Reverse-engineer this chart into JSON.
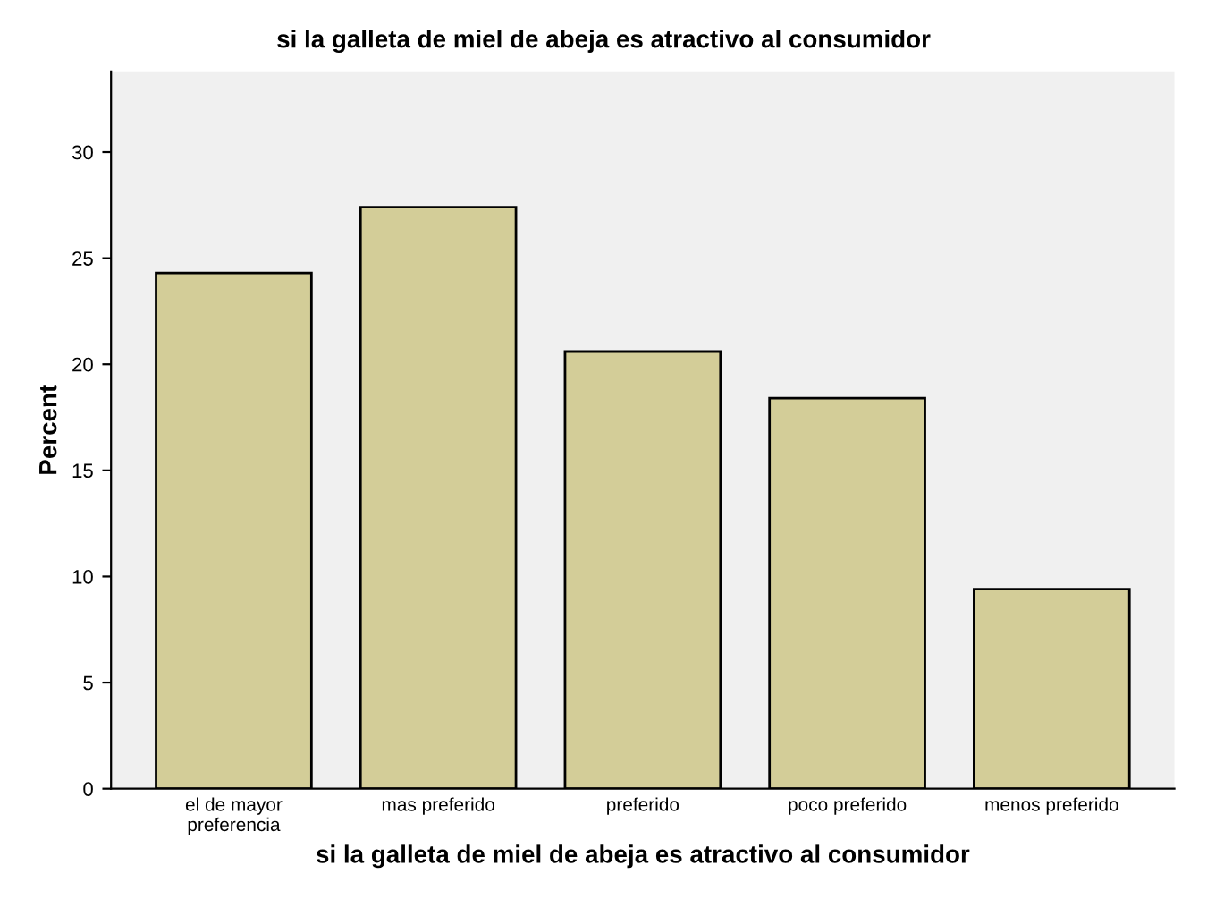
{
  "chart_data": {
    "type": "bar",
    "title": "si la galleta de miel de abeja es atractivo al consumidor",
    "xlabel": "si la galleta de miel de abeja es atractivo al consumidor",
    "ylabel": "Percent",
    "categories": [
      "el de mayor\npreferencia",
      "mas preferido",
      "preferido",
      "poco preferido",
      "menos preferido"
    ],
    "values": [
      24.3,
      27.4,
      20.6,
      18.4,
      9.4
    ],
    "color": "#d3cd98",
    "ylim": [
      0,
      33.8
    ],
    "yticks": [
      0,
      5,
      10,
      15,
      20,
      25,
      30
    ],
    "grid": false,
    "legend": false
  }
}
